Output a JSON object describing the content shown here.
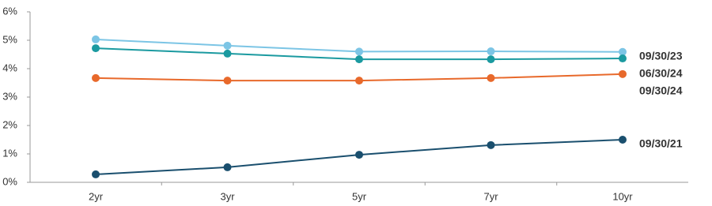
{
  "chart_data": {
    "type": "line",
    "categories": [
      "2yr",
      "3yr",
      "5yr",
      "7yr",
      "10yr"
    ],
    "series": [
      {
        "name": "09/30/23",
        "color": "#7cc5e5",
        "values": [
          5.03,
          4.81,
          4.6,
          4.61,
          4.59
        ]
      },
      {
        "name": "06/30/24",
        "color": "#1b9aa0",
        "values": [
          4.72,
          4.53,
          4.33,
          4.33,
          4.36
        ]
      },
      {
        "name": "09/30/24",
        "color": "#e8692b",
        "values": [
          3.67,
          3.58,
          3.58,
          3.67,
          3.81
        ]
      },
      {
        "name": "09/30/21",
        "color": "#1a4f6e",
        "values": [
          0.28,
          0.53,
          0.97,
          1.31,
          1.5
        ]
      }
    ],
    "ylim": [
      0,
      6
    ],
    "yticks": [
      {
        "value": 0,
        "label": "0%"
      },
      {
        "value": 1,
        "label": "1%"
      },
      {
        "value": 2,
        "label": "2%"
      },
      {
        "value": 3,
        "label": "3%"
      },
      {
        "value": 4,
        "label": "4%"
      },
      {
        "value": 5,
        "label": "5%"
      },
      {
        "value": 6,
        "label": "6%"
      }
    ]
  }
}
